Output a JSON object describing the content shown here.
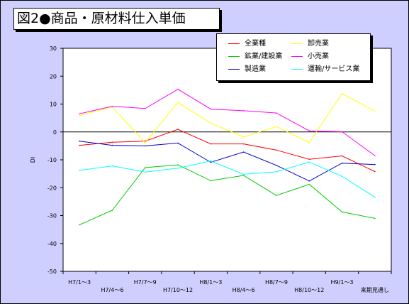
{
  "title": "図2●商品・原材料仕入単価",
  "chart_data": {
    "type": "line",
    "ylabel": "DI",
    "ylim": [
      -50,
      30
    ],
    "yticks": [
      30,
      20,
      10,
      0,
      -10,
      -20,
      -30,
      -40,
      -50
    ],
    "categories": [
      "H7/1～3",
      "H7/4～6",
      "H7/7～9",
      "H7/10～12",
      "H8/1～3",
      "H8/4～6",
      "H8/7～9",
      "H8/10～12",
      "H9/1～3",
      "来期見通し"
    ],
    "series": [
      {
        "name": "全業種",
        "color": "#ff0000",
        "values": [
          -4.8,
          -3.7,
          -3.3,
          0.9,
          -4.3,
          -4.3,
          -6.5,
          -9.8,
          -8.6,
          -14.2
        ]
      },
      {
        "name": "鉱業/建設業",
        "color": "#00cc00",
        "values": [
          -33.3,
          -28.1,
          -12.8,
          -11.8,
          -17.5,
          -15.6,
          -22.8,
          -18.8,
          -28.7,
          -31.0
        ]
      },
      {
        "name": "製造業",
        "color": "#0000cc",
        "values": [
          -3.3,
          -4.8,
          -5.0,
          -4.0,
          -10.9,
          -7.2,
          -12.0,
          -17.6,
          -11.2,
          -11.7
        ]
      },
      {
        "name": "卸売業",
        "color": "#ffff00",
        "values": [
          5.9,
          9.0,
          -3.9,
          10.6,
          3.1,
          -1.8,
          1.9,
          -3.8,
          13.7,
          7.5
        ]
      },
      {
        "name": "小売業",
        "color": "#ff00ff",
        "values": [
          6.5,
          9.2,
          8.4,
          15.3,
          8.2,
          7.6,
          6.8,
          0.4,
          0.1,
          -8.5
        ]
      },
      {
        "name": "運輸/サービス業",
        "color": "#00ffff",
        "values": [
          -13.8,
          -12.2,
          -14.4,
          -13.0,
          -10.4,
          -15.2,
          -14.3,
          -10.8,
          -15.9,
          -23.4
        ]
      }
    ]
  }
}
